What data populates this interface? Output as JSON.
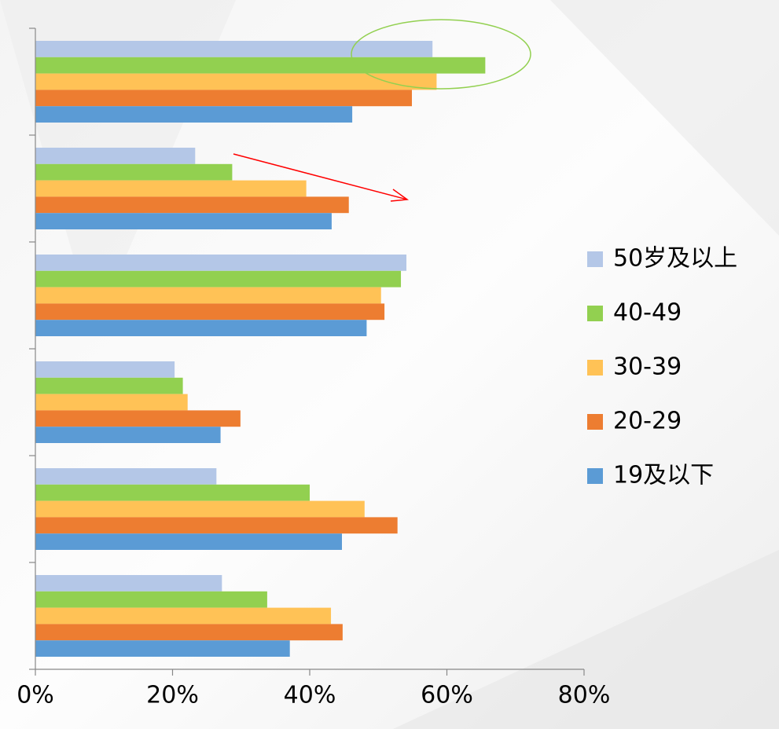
{
  "chart_data": {
    "type": "barh",
    "categories": [
      null,
      null,
      null,
      null,
      null,
      null
    ],
    "series": [
      {
        "name": "50岁及以上",
        "color": "#b4c7e7",
        "values": [
          57.9,
          23.3,
          54.1,
          20.3,
          26.4,
          27.2
        ]
      },
      {
        "name": "40-49",
        "color": "#92d050",
        "values": [
          65.6,
          28.7,
          53.3,
          21.5,
          40.0,
          33.8
        ]
      },
      {
        "name": "30-39",
        "color": "#ffc256",
        "values": [
          58.5,
          39.5,
          50.4,
          22.2,
          48.0,
          43.1
        ]
      },
      {
        "name": "20-29",
        "color": "#ed7d31",
        "values": [
          54.9,
          45.7,
          50.9,
          29.9,
          52.8,
          44.8
        ]
      },
      {
        "name": "19及以下",
        "color": "#5b9bd5",
        "values": [
          46.2,
          43.2,
          48.3,
          27.0,
          44.7,
          37.1
        ]
      }
    ],
    "xlim": [
      0,
      80
    ],
    "xticks": [
      {
        "value": 0,
        "label": "0%"
      },
      {
        "value": 20,
        "label": "20%"
      },
      {
        "value": 40,
        "label": "40%"
      },
      {
        "value": 60,
        "label": "60%"
      },
      {
        "value": 80,
        "label": "80%"
      }
    ],
    "legend": "right"
  }
}
